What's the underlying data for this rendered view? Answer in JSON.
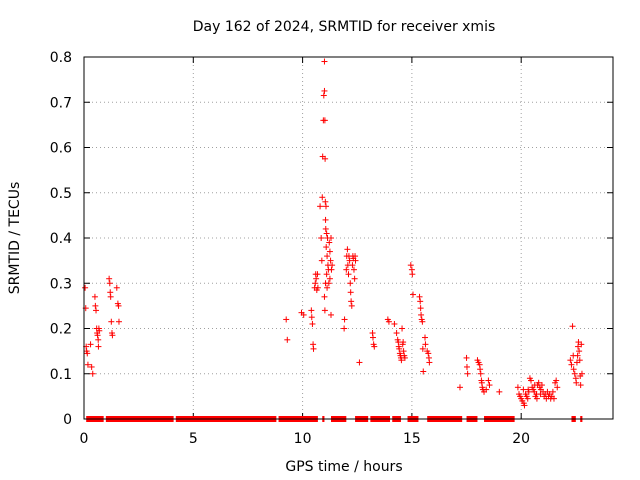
{
  "chart_data": {
    "type": "scatter",
    "title": "Day 162 of 2024, SRMTID for receiver xmis",
    "xlabel": "GPS time / hours",
    "ylabel": "SRMTID / TECUs",
    "xlim": [
      0,
      24.2
    ],
    "ylim": [
      0,
      0.8
    ],
    "xticks": [
      0,
      5,
      10,
      15,
      20
    ],
    "yticks": [
      0,
      0.1,
      0.2,
      0.3,
      0.4,
      0.5,
      0.6,
      0.7,
      0.8
    ],
    "xtick_labels": [
      "0",
      "5",
      "10",
      "15",
      "20"
    ],
    "ytick_labels": [
      "0",
      "0.1",
      "0.2",
      "0.3",
      "0.4",
      "0.5",
      "0.6",
      "0.7",
      "0.8"
    ],
    "grid": true,
    "marker": "+",
    "series": [
      {
        "name": "SRMTID",
        "color": "#ff0000",
        "zero_baseline": [
          [
            0.1,
            0.9
          ],
          [
            1.0,
            4.1
          ],
          [
            4.2,
            8.8
          ],
          [
            8.9,
            10.7
          ],
          [
            10.9,
            11.0
          ],
          [
            11.3,
            12.0
          ],
          [
            12.4,
            13.0
          ],
          [
            13.1,
            14.0
          ],
          [
            14.1,
            14.5
          ],
          [
            14.8,
            15.3
          ],
          [
            15.7,
            17.3
          ],
          [
            17.5,
            18.0
          ],
          [
            18.3,
            19.7
          ],
          [
            22.3,
            22.5
          ],
          [
            22.7,
            22.8
          ]
        ],
        "points": [
          {
            "x": 0.05,
            "y": 0.29
          },
          {
            "x": 0.08,
            "y": 0.245
          },
          {
            "x": 0.1,
            "y": 0.16
          },
          {
            "x": 0.12,
            "y": 0.15
          },
          {
            "x": 0.15,
            "y": 0.145
          },
          {
            "x": 0.18,
            "y": 0.12
          },
          {
            "x": 0.3,
            "y": 0.165
          },
          {
            "x": 0.35,
            "y": 0.115
          },
          {
            "x": 0.4,
            "y": 0.1
          },
          {
            "x": 0.5,
            "y": 0.27
          },
          {
            "x": 0.52,
            "y": 0.25
          },
          {
            "x": 0.55,
            "y": 0.24
          },
          {
            "x": 0.58,
            "y": 0.2
          },
          {
            "x": 0.6,
            "y": 0.19
          },
          {
            "x": 0.62,
            "y": 0.185
          },
          {
            "x": 0.65,
            "y": 0.175
          },
          {
            "x": 0.66,
            "y": 0.16
          },
          {
            "x": 0.68,
            "y": 0.2
          },
          {
            "x": 0.7,
            "y": 0.195
          },
          {
            "x": 1.15,
            "y": 0.31
          },
          {
            "x": 1.18,
            "y": 0.3
          },
          {
            "x": 1.2,
            "y": 0.28
          },
          {
            "x": 1.22,
            "y": 0.27
          },
          {
            "x": 1.25,
            "y": 0.215
          },
          {
            "x": 1.28,
            "y": 0.19
          },
          {
            "x": 1.3,
            "y": 0.185
          },
          {
            "x": 1.5,
            "y": 0.29
          },
          {
            "x": 1.55,
            "y": 0.255
          },
          {
            "x": 1.58,
            "y": 0.25
          },
          {
            "x": 1.6,
            "y": 0.215
          },
          {
            "x": 9.25,
            "y": 0.22
          },
          {
            "x": 9.3,
            "y": 0.175
          },
          {
            "x": 9.95,
            "y": 0.235
          },
          {
            "x": 10.05,
            "y": 0.23
          },
          {
            "x": 10.4,
            "y": 0.24
          },
          {
            "x": 10.42,
            "y": 0.225
          },
          {
            "x": 10.45,
            "y": 0.21
          },
          {
            "x": 10.48,
            "y": 0.165
          },
          {
            "x": 10.5,
            "y": 0.155
          },
          {
            "x": 10.55,
            "y": 0.29
          },
          {
            "x": 10.58,
            "y": 0.3
          },
          {
            "x": 10.6,
            "y": 0.32
          },
          {
            "x": 10.62,
            "y": 0.31
          },
          {
            "x": 10.65,
            "y": 0.285
          },
          {
            "x": 10.68,
            "y": 0.32
          },
          {
            "x": 10.7,
            "y": 0.29
          },
          {
            "x": 10.8,
            "y": 0.47
          },
          {
            "x": 10.85,
            "y": 0.4
          },
          {
            "x": 10.88,
            "y": 0.35
          },
          {
            "x": 10.9,
            "y": 0.49
          },
          {
            "x": 10.92,
            "y": 0.58
          },
          {
            "x": 10.95,
            "y": 0.66
          },
          {
            "x": 10.97,
            "y": 0.715
          },
          {
            "x": 11.0,
            "y": 0.79
          },
          {
            "x": 11.0,
            "y": 0.725
          },
          {
            "x": 11.02,
            "y": 0.66
          },
          {
            "x": 11.03,
            "y": 0.575
          },
          {
            "x": 11.04,
            "y": 0.48
          },
          {
            "x": 11.05,
            "y": 0.44
          },
          {
            "x": 11.06,
            "y": 0.42
          },
          {
            "x": 11.07,
            "y": 0.47
          },
          {
            "x": 11.08,
            "y": 0.38
          },
          {
            "x": 11.1,
            "y": 0.41
          },
          {
            "x": 11.12,
            "y": 0.36
          },
          {
            "x": 11.14,
            "y": 0.4
          },
          {
            "x": 11.16,
            "y": 0.34
          },
          {
            "x": 11.18,
            "y": 0.33
          },
          {
            "x": 11.2,
            "y": 0.3
          },
          {
            "x": 11.22,
            "y": 0.39
          },
          {
            "x": 11.25,
            "y": 0.37
          },
          {
            "x": 11.28,
            "y": 0.35
          },
          {
            "x": 11.3,
            "y": 0.4
          },
          {
            "x": 11.0,
            "y": 0.27
          },
          {
            "x": 11.02,
            "y": 0.24
          },
          {
            "x": 11.05,
            "y": 0.3
          },
          {
            "x": 11.1,
            "y": 0.32
          },
          {
            "x": 11.3,
            "y": 0.23
          },
          {
            "x": 11.32,
            "y": 0.33
          },
          {
            "x": 11.35,
            "y": 0.34
          },
          {
            "x": 11.12,
            "y": 0.29
          },
          {
            "x": 11.25,
            "y": 0.31
          },
          {
            "x": 11.9,
            "y": 0.2
          },
          {
            "x": 11.92,
            "y": 0.22
          },
          {
            "x": 12.0,
            "y": 0.33
          },
          {
            "x": 12.02,
            "y": 0.36
          },
          {
            "x": 12.05,
            "y": 0.375
          },
          {
            "x": 12.07,
            "y": 0.34
          },
          {
            "x": 12.1,
            "y": 0.32
          },
          {
            "x": 12.12,
            "y": 0.36
          },
          {
            "x": 12.15,
            "y": 0.35
          },
          {
            "x": 12.18,
            "y": 0.3
          },
          {
            "x": 12.2,
            "y": 0.28
          },
          {
            "x": 12.22,
            "y": 0.26
          },
          {
            "x": 12.25,
            "y": 0.25
          },
          {
            "x": 12.28,
            "y": 0.34
          },
          {
            "x": 12.3,
            "y": 0.36
          },
          {
            "x": 12.32,
            "y": 0.355
          },
          {
            "x": 12.35,
            "y": 0.33
          },
          {
            "x": 12.38,
            "y": 0.31
          },
          {
            "x": 12.4,
            "y": 0.36
          },
          {
            "x": 12.42,
            "y": 0.35
          },
          {
            "x": 12.6,
            "y": 0.125
          },
          {
            "x": 13.2,
            "y": 0.19
          },
          {
            "x": 13.22,
            "y": 0.18
          },
          {
            "x": 13.25,
            "y": 0.165
          },
          {
            "x": 13.28,
            "y": 0.16
          },
          {
            "x": 13.9,
            "y": 0.22
          },
          {
            "x": 13.95,
            "y": 0.215
          },
          {
            "x": 14.2,
            "y": 0.21
          },
          {
            "x": 14.3,
            "y": 0.19
          },
          {
            "x": 14.35,
            "y": 0.175
          },
          {
            "x": 14.38,
            "y": 0.17
          },
          {
            "x": 14.4,
            "y": 0.16
          },
          {
            "x": 14.42,
            "y": 0.155
          },
          {
            "x": 14.45,
            "y": 0.145
          },
          {
            "x": 14.48,
            "y": 0.14
          },
          {
            "x": 14.5,
            "y": 0.135
          },
          {
            "x": 14.52,
            "y": 0.13
          },
          {
            "x": 14.55,
            "y": 0.2
          },
          {
            "x": 14.58,
            "y": 0.165
          },
          {
            "x": 14.6,
            "y": 0.17
          },
          {
            "x": 14.62,
            "y": 0.15
          },
          {
            "x": 14.65,
            "y": 0.14
          },
          {
            "x": 14.68,
            "y": 0.135
          },
          {
            "x": 14.95,
            "y": 0.34
          },
          {
            "x": 15.0,
            "y": 0.33
          },
          {
            "x": 15.02,
            "y": 0.32
          },
          {
            "x": 15.05,
            "y": 0.275
          },
          {
            "x": 15.35,
            "y": 0.27
          },
          {
            "x": 15.38,
            "y": 0.26
          },
          {
            "x": 15.4,
            "y": 0.245
          },
          {
            "x": 15.42,
            "y": 0.23
          },
          {
            "x": 15.45,
            "y": 0.22
          },
          {
            "x": 15.48,
            "y": 0.215
          },
          {
            "x": 15.5,
            "y": 0.155
          },
          {
            "x": 15.52,
            "y": 0.105
          },
          {
            "x": 15.6,
            "y": 0.18
          },
          {
            "x": 15.62,
            "y": 0.165
          },
          {
            "x": 15.7,
            "y": 0.15
          },
          {
            "x": 15.75,
            "y": 0.145
          },
          {
            "x": 15.78,
            "y": 0.135
          },
          {
            "x": 15.8,
            "y": 0.125
          },
          {
            "x": 17.2,
            "y": 0.07
          },
          {
            "x": 17.5,
            "y": 0.135
          },
          {
            "x": 17.52,
            "y": 0.115
          },
          {
            "x": 17.55,
            "y": 0.1
          },
          {
            "x": 18.0,
            "y": 0.13
          },
          {
            "x": 18.05,
            "y": 0.125
          },
          {
            "x": 18.1,
            "y": 0.12
          },
          {
            "x": 18.12,
            "y": 0.11
          },
          {
            "x": 18.15,
            "y": 0.1
          },
          {
            "x": 18.18,
            "y": 0.085
          },
          {
            "x": 18.2,
            "y": 0.08
          },
          {
            "x": 18.22,
            "y": 0.07
          },
          {
            "x": 18.25,
            "y": 0.065
          },
          {
            "x": 18.3,
            "y": 0.06
          },
          {
            "x": 18.4,
            "y": 0.065
          },
          {
            "x": 18.5,
            "y": 0.085
          },
          {
            "x": 18.55,
            "y": 0.075
          },
          {
            "x": 19.0,
            "y": 0.06
          },
          {
            "x": 19.85,
            "y": 0.07
          },
          {
            "x": 19.9,
            "y": 0.055
          },
          {
            "x": 19.95,
            "y": 0.05
          },
          {
            "x": 20.0,
            "y": 0.045
          },
          {
            "x": 20.05,
            "y": 0.04
          },
          {
            "x": 20.1,
            "y": 0.065
          },
          {
            "x": 20.15,
            "y": 0.03
          },
          {
            "x": 20.2,
            "y": 0.055
          },
          {
            "x": 20.25,
            "y": 0.05
          },
          {
            "x": 20.3,
            "y": 0.045
          },
          {
            "x": 20.35,
            "y": 0.06
          },
          {
            "x": 20.4,
            "y": 0.09
          },
          {
            "x": 20.45,
            "y": 0.085
          },
          {
            "x": 20.5,
            "y": 0.07
          },
          {
            "x": 20.55,
            "y": 0.065
          },
          {
            "x": 20.6,
            "y": 0.06
          },
          {
            "x": 20.65,
            "y": 0.05
          },
          {
            "x": 20.7,
            "y": 0.055
          },
          {
            "x": 20.75,
            "y": 0.075
          },
          {
            "x": 20.8,
            "y": 0.08
          },
          {
            "x": 20.85,
            "y": 0.07
          },
          {
            "x": 20.9,
            "y": 0.065
          },
          {
            "x": 20.95,
            "y": 0.075
          },
          {
            "x": 21.0,
            "y": 0.06
          },
          {
            "x": 21.05,
            "y": 0.05
          },
          {
            "x": 21.1,
            "y": 0.055
          },
          {
            "x": 21.15,
            "y": 0.045
          },
          {
            "x": 21.2,
            "y": 0.06
          },
          {
            "x": 21.25,
            "y": 0.05
          },
          {
            "x": 21.3,
            "y": 0.055
          },
          {
            "x": 21.35,
            "y": 0.045
          },
          {
            "x": 21.4,
            "y": 0.05
          },
          {
            "x": 21.45,
            "y": 0.06
          },
          {
            "x": 21.5,
            "y": 0.045
          },
          {
            "x": 21.55,
            "y": 0.08
          },
          {
            "x": 21.6,
            "y": 0.085
          },
          {
            "x": 21.65,
            "y": 0.07
          },
          {
            "x": 20.12,
            "y": 0.035
          },
          {
            "x": 20.32,
            "y": 0.065
          },
          {
            "x": 20.62,
            "y": 0.075
          },
          {
            "x": 20.72,
            "y": 0.045
          },
          {
            "x": 20.88,
            "y": 0.055
          },
          {
            "x": 22.25,
            "y": 0.13
          },
          {
            "x": 22.3,
            "y": 0.12
          },
          {
            "x": 22.35,
            "y": 0.205
          },
          {
            "x": 22.38,
            "y": 0.14
          },
          {
            "x": 22.4,
            "y": 0.11
          },
          {
            "x": 22.45,
            "y": 0.1
          },
          {
            "x": 22.5,
            "y": 0.09
          },
          {
            "x": 22.52,
            "y": 0.08
          },
          {
            "x": 22.55,
            "y": 0.125
          },
          {
            "x": 22.58,
            "y": 0.14
          },
          {
            "x": 22.6,
            "y": 0.16
          },
          {
            "x": 22.62,
            "y": 0.17
          },
          {
            "x": 22.65,
            "y": 0.15
          },
          {
            "x": 22.68,
            "y": 0.13
          },
          {
            "x": 22.7,
            "y": 0.095
          },
          {
            "x": 22.72,
            "y": 0.075
          },
          {
            "x": 22.75,
            "y": 0.165
          },
          {
            "x": 22.78,
            "y": 0.1
          }
        ]
      }
    ]
  }
}
